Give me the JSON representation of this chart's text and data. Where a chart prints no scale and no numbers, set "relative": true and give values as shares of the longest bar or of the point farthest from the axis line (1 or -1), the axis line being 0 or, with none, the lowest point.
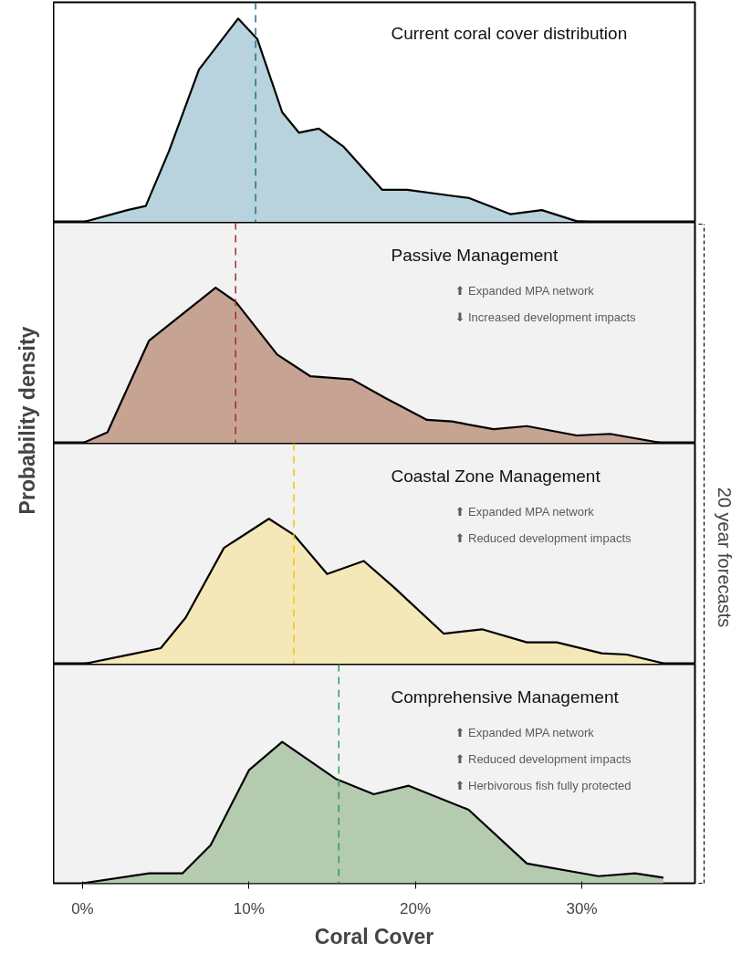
{
  "chart_data": [
    {
      "type": "area",
      "title": "Current coral cover distribution",
      "ylabel": "Probability density",
      "relative": true,
      "color": "#b8d3dd",
      "xlim": [
        -1.75,
        36.8
      ],
      "tick_labels": false,
      "x": [
        0,
        2.7,
        3.8,
        5.2,
        7.0,
        9.35,
        10.5,
        12.0,
        13.0,
        14.2,
        15.7,
        18.0,
        19.5,
        22.2,
        23.2,
        25.7,
        27.6,
        29.7,
        31.0,
        34.9
      ],
      "values": [
        0,
        0.06,
        0.08,
        0.35,
        0.75,
        1.0,
        0.9,
        0.54,
        0.44,
        0.46,
        0.37,
        0.16,
        0.16,
        0.13,
        0.12,
        0.04,
        0.06,
        0.005,
        0,
        0
      ],
      "ref_lines": [
        {
          "axis": "x",
          "value": 10.4,
          "color": "#1f6f8b",
          "line_style": "dashed"
        }
      ]
    },
    {
      "type": "area",
      "title": "Passive Management",
      "relative": true,
      "color": "#c6a393",
      "xlim": [
        -1.75,
        36.8
      ],
      "tick_labels": false,
      "x": [
        0,
        1.5,
        4.0,
        6.0,
        8.0,
        9.2,
        11.7,
        13.7,
        16.2,
        18.2,
        20.7,
        22.2,
        24.7,
        26.7,
        29.7,
        31.7,
        34.9
      ],
      "values": [
        0,
        0.07,
        0.66,
        0.83,
        1.0,
        0.91,
        0.57,
        0.43,
        0.41,
        0.29,
        0.15,
        0.14,
        0.09,
        0.11,
        0.05,
        0.06,
        0
      ],
      "ref_lines": [
        {
          "axis": "x",
          "value": 9.2,
          "color": "#a52a2a",
          "line_style": "dashed"
        }
      ],
      "annotations": [
        "⬆ Expanded MPA network",
        "⬇ Increased development impacts"
      ]
    },
    {
      "type": "area",
      "title": "Coastal Zone Management",
      "relative": true,
      "color": "#f5e8b8",
      "xlim": [
        -1.75,
        36.8
      ],
      "tick_labels": false,
      "x": [
        0,
        3.0,
        4.7,
        6.2,
        8.5,
        11.2,
        12.7,
        14.7,
        16.9,
        18.7,
        21.7,
        24.0,
        26.7,
        28.5,
        31.2,
        32.7,
        34.9
      ],
      "values": [
        0,
        0.07,
        0.11,
        0.32,
        0.8,
        1.0,
        0.89,
        0.62,
        0.71,
        0.53,
        0.21,
        0.24,
        0.15,
        0.15,
        0.075,
        0.066,
        0.006
      ],
      "ref_lines": [
        {
          "axis": "x",
          "value": 12.7,
          "color": "#f2c500",
          "line_style": "dashed"
        }
      ],
      "annotations": [
        "⬆ Expanded MPA network",
        "⬆ Reduced development impacts"
      ]
    },
    {
      "type": "area",
      "title": "Comprehensive Management",
      "xlabel": "Coral Cover",
      "relative": true,
      "color": "#b5cbb0",
      "xlim": [
        -1.75,
        36.8
      ],
      "tick_labels": "x",
      "xticks": [
        {
          "value": 0,
          "label": "0%"
        },
        {
          "value": 10,
          "label": "10%"
        },
        {
          "value": 20,
          "label": "20%"
        },
        {
          "value": 30,
          "label": "30%"
        }
      ],
      "x": [
        0,
        4.0,
        6.0,
        7.7,
        10.0,
        12.0,
        15.2,
        17.5,
        19.6,
        23.2,
        26.7,
        31.0,
        33.2,
        34.9
      ],
      "values": [
        0,
        0.07,
        0.07,
        0.27,
        0.8,
        1.0,
        0.74,
        0.63,
        0.69,
        0.52,
        0.14,
        0.05,
        0.07,
        0.04
      ],
      "ref_lines": [
        {
          "axis": "x",
          "value": 15.4,
          "color": "#2e9e5a",
          "line_style": "dashed"
        }
      ],
      "annotations": [
        "⬆ Expanded MPA network",
        "⬆ Reduced development impacts",
        "⬆ Herbivorous fish fully protected"
      ]
    },
    {
      "type": "other",
      "annotations": [
        "20 year forecasts"
      ]
    }
  ]
}
